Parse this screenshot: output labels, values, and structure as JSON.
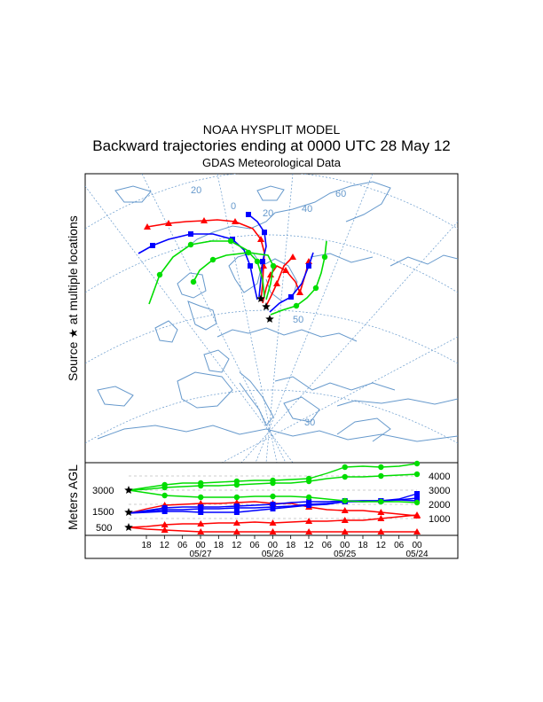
{
  "header": {
    "line1": "NOAA HYSPLIT MODEL",
    "line2": "Backward trajectories ending at 0000 UTC 28 May 12",
    "line3": "GDAS Meteorological Data"
  },
  "side_label": {
    "source_prefix": "Source",
    "source_suffix": "at multiple locations",
    "height_axis": "Meters AGL"
  },
  "map": {
    "grid_labels": [
      "20",
      "0",
      "20",
      "40",
      "60",
      "50",
      "30"
    ]
  },
  "height_panel": {
    "left_levels": [
      "3000",
      "1500",
      "500"
    ],
    "right_ticks": [
      "4000",
      "3000",
      "2000",
      "1000"
    ],
    "hour_ticks": [
      "18",
      "12",
      "06",
      "00",
      "18",
      "12",
      "06",
      "00",
      "18",
      "12",
      "06",
      "00",
      "18",
      "12",
      "06",
      "00"
    ],
    "date_ticks": [
      "05/27",
      "05/26",
      "05/25",
      "05/24"
    ]
  },
  "colors": {
    "red": "#ff0000",
    "blue": "#0000ff",
    "green": "#00dd00",
    "coast": "#6699cc",
    "grid": "#6699cc"
  }
}
